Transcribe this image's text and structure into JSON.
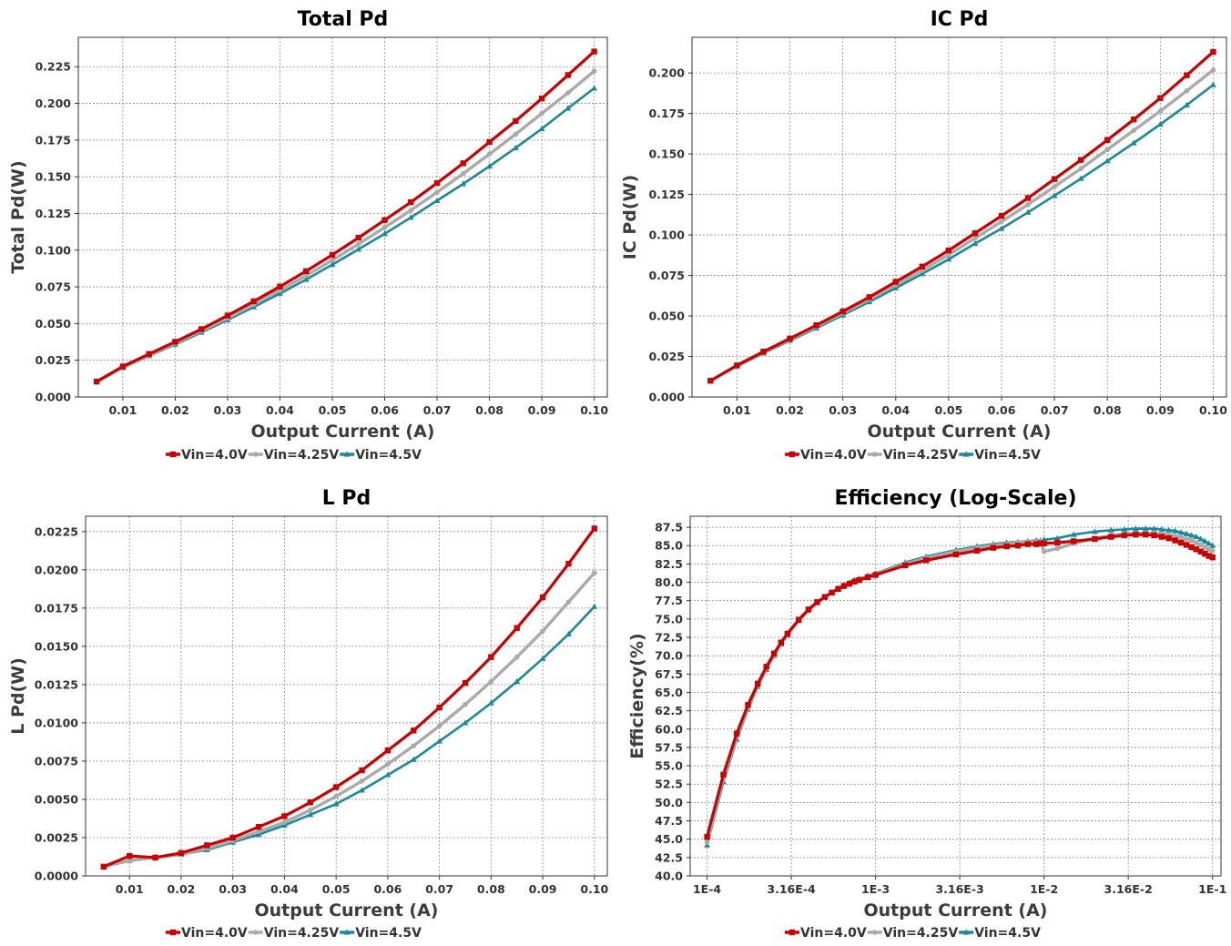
{
  "chart_data": [
    {
      "id": "total",
      "type": "line",
      "title": "Total Pd",
      "xlabel": "Output Current (A)",
      "ylabel": "Total Pd(W)",
      "xscale": "linear",
      "xlim": [
        0.0015,
        0.1025
      ],
      "ylim": [
        0.0,
        0.245
      ],
      "xticks": [
        0.01,
        0.02,
        0.03,
        0.04,
        0.05,
        0.06,
        0.07,
        0.08,
        0.09,
        0.1
      ],
      "xticklabels": [
        "0.01",
        "0.02",
        "0.03",
        "0.04",
        "0.05",
        "0.06",
        "0.07",
        "0.08",
        "0.09",
        "0.10"
      ],
      "yticks": [
        0.0,
        0.025,
        0.05,
        0.075,
        0.1,
        0.125,
        0.15,
        0.175,
        0.2,
        0.225
      ],
      "yticklabels": [
        "0.000",
        "0.025",
        "0.050",
        "0.075",
        "0.100",
        "0.125",
        "0.150",
        "0.175",
        "0.200",
        "0.225"
      ],
      "grid": true,
      "legend": "bottom-center",
      "x": [
        0.005,
        0.01,
        0.015,
        0.02,
        0.025,
        0.03,
        0.035,
        0.04,
        0.045,
        0.05,
        0.055,
        0.06,
        0.065,
        0.07,
        0.075,
        0.08,
        0.085,
        0.09,
        0.095,
        0.1
      ],
      "series": [
        {
          "name": "Vin=4.0V",
          "color": "#cc0000",
          "marker": "square",
          "values": [
            0.0105,
            0.0208,
            0.0293,
            0.0376,
            0.0462,
            0.0555,
            0.0652,
            0.0752,
            0.0857,
            0.0968,
            0.1085,
            0.1205,
            0.1327,
            0.1457,
            0.1592,
            0.1737,
            0.188,
            0.2033,
            0.2193,
            0.2353
          ]
        },
        {
          "name": "Vin=4.25V",
          "color": "#aaaaaa",
          "marker": "circle",
          "values": [
            0.0103,
            0.0203,
            0.0285,
            0.0366,
            0.045,
            0.0537,
            0.063,
            0.0727,
            0.0827,
            0.0932,
            0.1042,
            0.1155,
            0.1272,
            0.1395,
            0.1522,
            0.1655,
            0.179,
            0.1932,
            0.2072,
            0.222
          ]
        },
        {
          "name": "Vin=4.5V",
          "color": "#1a8a9a",
          "marker": "triangle",
          "values": [
            0.0102,
            0.0199,
            0.028,
            0.0358,
            0.044,
            0.0525,
            0.0613,
            0.0705,
            0.08,
            0.0902,
            0.1006,
            0.1112,
            0.1223,
            0.1337,
            0.1452,
            0.1572,
            0.1697,
            0.1827,
            0.1967,
            0.2103
          ]
        }
      ]
    },
    {
      "id": "ic",
      "type": "line",
      "title": "IC Pd",
      "xlabel": "Output Current (A)",
      "ylabel": "IC Pd(W)",
      "xscale": "linear",
      "xlim": [
        0.0015,
        0.1025
      ],
      "ylim": [
        0.0,
        0.222
      ],
      "xticks": [
        0.01,
        0.02,
        0.03,
        0.04,
        0.05,
        0.06,
        0.07,
        0.08,
        0.09,
        0.1
      ],
      "xticklabels": [
        "0.01",
        "0.02",
        "0.03",
        "0.04",
        "0.05",
        "0.06",
        "0.07",
        "0.08",
        "0.09",
        "0.10"
      ],
      "yticks": [
        0.0,
        0.025,
        0.05,
        0.075,
        0.1,
        0.125,
        0.15,
        0.175,
        0.2
      ],
      "yticklabels": [
        "0.000",
        "0.025",
        "0.050",
        "0.075",
        "0.100",
        "0.125",
        "0.150",
        "0.175",
        "0.200"
      ],
      "grid": true,
      "legend": "bottom-center",
      "x": [
        0.005,
        0.01,
        0.015,
        0.02,
        0.025,
        0.03,
        0.035,
        0.04,
        0.045,
        0.05,
        0.055,
        0.06,
        0.065,
        0.07,
        0.075,
        0.08,
        0.085,
        0.09,
        0.095,
        0.1
      ],
      "series": [
        {
          "name": "Vin=4.0V",
          "color": "#cc0000",
          "marker": "square",
          "values": [
            0.01,
            0.0195,
            0.028,
            0.0361,
            0.0443,
            0.0528,
            0.0616,
            0.0711,
            0.0805,
            0.0905,
            0.1011,
            0.1118,
            0.1228,
            0.1345,
            0.1463,
            0.1586,
            0.1713,
            0.1845,
            0.1986,
            0.213
          ]
        },
        {
          "name": "Vin=4.25V",
          "color": "#aaaaaa",
          "marker": "circle",
          "values": [
            0.01,
            0.0195,
            0.0277,
            0.0356,
            0.0435,
            0.0518,
            0.0602,
            0.0692,
            0.0782,
            0.0878,
            0.098,
            0.1083,
            0.1188,
            0.1298,
            0.141,
            0.1527,
            0.1646,
            0.1765,
            0.189,
            0.2018
          ]
        },
        {
          "name": "Vin=4.5V",
          "color": "#1a8a9a",
          "marker": "triangle",
          "values": [
            0.01,
            0.019,
            0.027,
            0.0348,
            0.0425,
            0.0505,
            0.0587,
            0.0673,
            0.076,
            0.085,
            0.0947,
            0.104,
            0.114,
            0.1243,
            0.1348,
            0.1457,
            0.1568,
            0.1683,
            0.1802,
            0.1927
          ]
        }
      ]
    },
    {
      "id": "l",
      "type": "line",
      "title": "L Pd",
      "xlabel": "Output Current (A)",
      "ylabel": "L Pd(W)",
      "xscale": "linear",
      "xlim": [
        0.0015,
        0.1025
      ],
      "ylim": [
        0.0,
        0.0235
      ],
      "xticks": [
        0.01,
        0.02,
        0.03,
        0.04,
        0.05,
        0.06,
        0.07,
        0.08,
        0.09,
        0.1
      ],
      "xticklabels": [
        "0.01",
        "0.02",
        "0.03",
        "0.04",
        "0.05",
        "0.06",
        "0.07",
        "0.08",
        "0.09",
        "0.10"
      ],
      "yticks": [
        0.0,
        0.0025,
        0.005,
        0.0075,
        0.01,
        0.0125,
        0.015,
        0.0175,
        0.02,
        0.0225
      ],
      "yticklabels": [
        "0.0000",
        "0.0025",
        "0.0050",
        "0.0075",
        "0.0100",
        "0.0125",
        "0.0150",
        "0.0175",
        "0.0200",
        "0.0225"
      ],
      "grid": true,
      "legend": "bottom-center",
      "x": [
        0.005,
        0.01,
        0.015,
        0.02,
        0.025,
        0.03,
        0.035,
        0.04,
        0.045,
        0.05,
        0.055,
        0.06,
        0.065,
        0.07,
        0.075,
        0.08,
        0.085,
        0.09,
        0.095,
        0.1
      ],
      "series": [
        {
          "name": "Vin=4.0V",
          "color": "#cc0000",
          "marker": "square",
          "values": [
            0.0006,
            0.0013,
            0.0012,
            0.0015,
            0.002,
            0.0025,
            0.0032,
            0.0039,
            0.0048,
            0.0058,
            0.0069,
            0.0082,
            0.0095,
            0.011,
            0.0126,
            0.0143,
            0.0162,
            0.0182,
            0.0204,
            0.0227
          ]
        },
        {
          "name": "Vin=4.25V",
          "color": "#aaaaaa",
          "marker": "circle",
          "values": [
            0.0006,
            0.001,
            0.0012,
            0.0014,
            0.0018,
            0.0023,
            0.0029,
            0.0035,
            0.0043,
            0.0052,
            0.0062,
            0.0073,
            0.0085,
            0.0098,
            0.0112,
            0.0127,
            0.0143,
            0.016,
            0.0179,
            0.0198
          ]
        },
        {
          "name": "Vin=4.5V",
          "color": "#1a8a9a",
          "marker": "triangle",
          "values": [
            0.0006,
            0.001,
            0.0012,
            0.0014,
            0.0017,
            0.0022,
            0.0027,
            0.0033,
            0.004,
            0.0047,
            0.0056,
            0.0066,
            0.0076,
            0.0088,
            0.01,
            0.0113,
            0.0127,
            0.0142,
            0.0158,
            0.0176
          ]
        }
      ]
    },
    {
      "id": "eff",
      "type": "line",
      "title": "Efficiency (Log-Scale)",
      "xlabel": "Output Current (A)",
      "ylabel": "Efficiency(%)",
      "xscale": "log",
      "xlim": [
        7.94e-05,
        0.1122
      ],
      "ylim": [
        40.0,
        89.0
      ],
      "xticks": [
        0.0001,
        0.000316,
        0.001,
        0.00316,
        0.01,
        0.0316,
        0.1
      ],
      "xticklabels": [
        "1E-4",
        "3.16E-4",
        "1E-3",
        "3.16E-3",
        "1E-2",
        "3.16E-2",
        "1E-1"
      ],
      "yticks": [
        40.0,
        42.5,
        45.0,
        47.5,
        50.0,
        52.5,
        55.0,
        57.5,
        60.0,
        62.5,
        65.0,
        67.5,
        70.0,
        72.5,
        75.0,
        77.5,
        80.0,
        82.5,
        85.0,
        87.5
      ],
      "yticklabels": [
        "40.0",
        "42.5",
        "45.0",
        "47.5",
        "50.0",
        "52.5",
        "55.0",
        "57.5",
        "60.0",
        "62.5",
        "65.0",
        "67.5",
        "70.0",
        "72.5",
        "75.0",
        "77.5",
        "80.0",
        "82.5",
        "85.0",
        "87.5"
      ],
      "grid": true,
      "legend": "bottom-center",
      "x": [
        0.0001,
        0.000125,
        0.00015,
        0.000175,
        0.0002,
        0.000225,
        0.00025,
        0.000275,
        0.0003,
        0.00035,
        0.0004,
        0.00045,
        0.0005,
        0.00055,
        0.0006,
        0.00065,
        0.0007,
        0.00075,
        0.0008,
        0.0009,
        0.001,
        0.0015,
        0.002,
        0.003,
        0.004,
        0.005,
        0.006,
        0.007,
        0.008,
        0.009,
        0.0095,
        0.01,
        0.012,
        0.015,
        0.02,
        0.025,
        0.03,
        0.035,
        0.04,
        0.045,
        0.05,
        0.055,
        0.06,
        0.065,
        0.07,
        0.075,
        0.08,
        0.085,
        0.09,
        0.095,
        0.1
      ],
      "series": [
        {
          "name": "Vin=4.0V",
          "color": "#cc0000",
          "marker": "square",
          "values": [
            45.3,
            53.8,
            59.4,
            63.3,
            66.2,
            68.5,
            70.3,
            71.8,
            73.0,
            74.9,
            76.3,
            77.3,
            78.0,
            78.6,
            79.1,
            79.5,
            79.8,
            80.1,
            80.3,
            80.7,
            81.0,
            82.3,
            83.0,
            83.8,
            84.3,
            84.7,
            84.9,
            85.0,
            85.2,
            85.2,
            85.3,
            85.3,
            85.4,
            85.6,
            85.9,
            86.2,
            86.4,
            86.5,
            86.5,
            86.4,
            86.2,
            86.0,
            85.7,
            85.4,
            85.1,
            84.8,
            84.5,
            84.2,
            83.9,
            83.6,
            83.4
          ]
        },
        {
          "name": "Vin=4.25V",
          "color": "#aaaaaa",
          "marker": "circle",
          "values": [
            44.6,
            53.3,
            59.0,
            63.0,
            66.0,
            68.3,
            70.1,
            71.7,
            72.9,
            74.8,
            76.2,
            77.2,
            78.0,
            78.6,
            79.1,
            79.6,
            79.9,
            80.2,
            80.4,
            80.8,
            81.1,
            82.5,
            83.3,
            84.2,
            84.7,
            85.0,
            85.2,
            85.4,
            85.5,
            85.5,
            85.6,
            84.2,
            84.6,
            85.3,
            86.0,
            86.4,
            86.6,
            86.7,
            86.7,
            86.7,
            86.6,
            86.5,
            86.3,
            86.1,
            85.9,
            85.7,
            85.4,
            85.1,
            84.8,
            84.5,
            84.3
          ]
        },
        {
          "name": "Vin=4.5V",
          "color": "#1a8a9a",
          "marker": "triangle",
          "values": [
            44.2,
            52.8,
            58.6,
            62.7,
            65.8,
            68.1,
            70.0,
            71.6,
            72.8,
            74.8,
            76.2,
            77.2,
            78.0,
            78.6,
            79.2,
            79.6,
            80.0,
            80.3,
            80.5,
            80.9,
            81.2,
            82.7,
            83.5,
            84.4,
            84.9,
            85.2,
            85.4,
            85.5,
            85.6,
            85.7,
            85.7,
            85.8,
            86.0,
            86.5,
            86.9,
            87.1,
            87.2,
            87.3,
            87.3,
            87.3,
            87.2,
            87.1,
            87.0,
            86.8,
            86.6,
            86.4,
            86.2,
            85.9,
            85.6,
            85.3,
            85.0
          ]
        }
      ]
    }
  ]
}
